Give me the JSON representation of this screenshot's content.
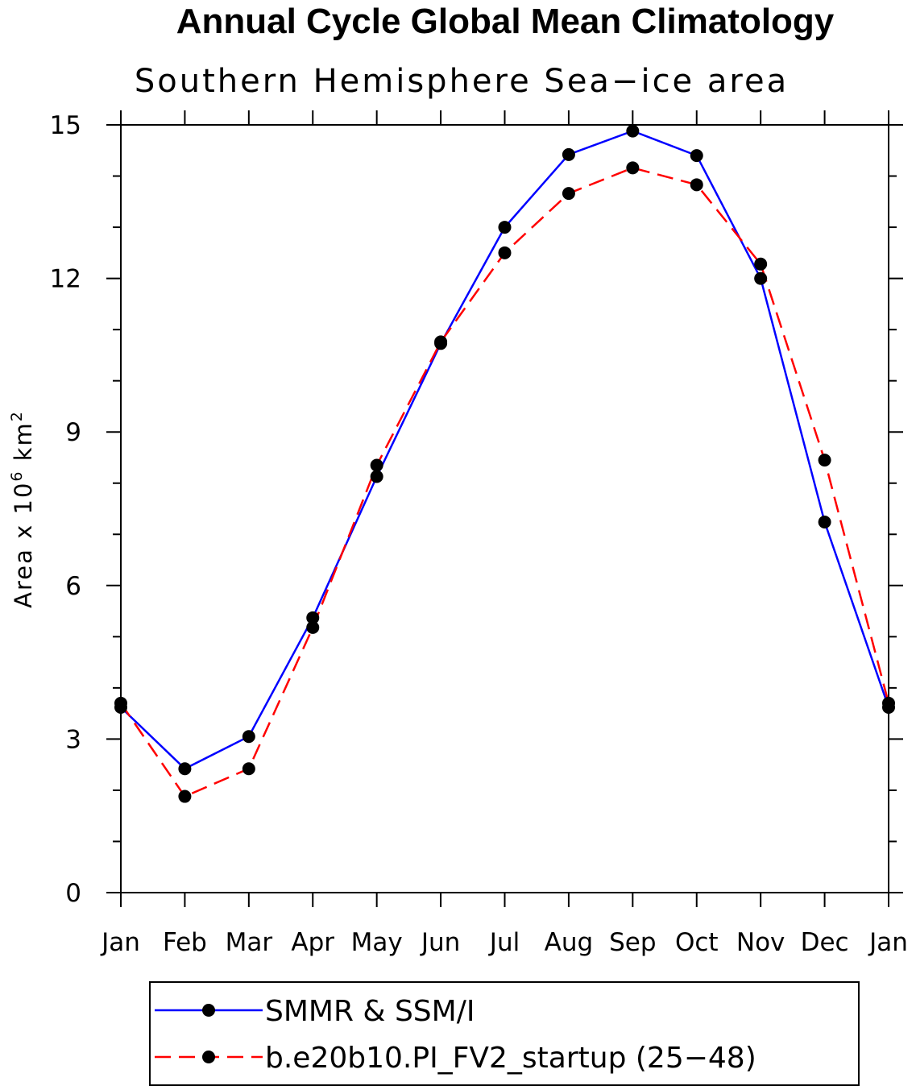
{
  "chart_data": {
    "type": "line",
    "title": "Annual Cycle Global Mean Climatology",
    "subtitle": "Southern Hemisphere Sea−ice area",
    "ylabel": "Area x 10",
    "ylabel_exp1": "6",
    "ylabel_unit": " km",
    "ylabel_exp2": "2",
    "xlabel": "",
    "categories": [
      "Jan",
      "Feb",
      "Mar",
      "Apr",
      "May",
      "Jun",
      "Jul",
      "Aug",
      "Sep",
      "Oct",
      "Nov",
      "Dec",
      "Jan"
    ],
    "ylim": [
      0,
      15
    ],
    "yticks": [
      0,
      3,
      6,
      9,
      12,
      15
    ],
    "grid": false,
    "legend_position": "bottom",
    "series": [
      {
        "name": "SMMR & SSM/I",
        "color": "#0000ff",
        "dash": "solid",
        "marker": "filled-circle",
        "values": [
          3.62,
          2.42,
          3.05,
          5.37,
          8.13,
          10.73,
          13.0,
          14.42,
          14.88,
          14.4,
          12.0,
          7.24,
          3.62
        ]
      },
      {
        "name": "b.e20b10.PI_FV2_startup (25−48)",
        "color": "#ff0000",
        "dash": "dashed",
        "marker": "filled-circle",
        "values": [
          3.7,
          1.88,
          2.42,
          5.18,
          8.35,
          10.76,
          12.5,
          13.66,
          14.16,
          13.83,
          12.28,
          8.45,
          3.7
        ]
      }
    ]
  }
}
